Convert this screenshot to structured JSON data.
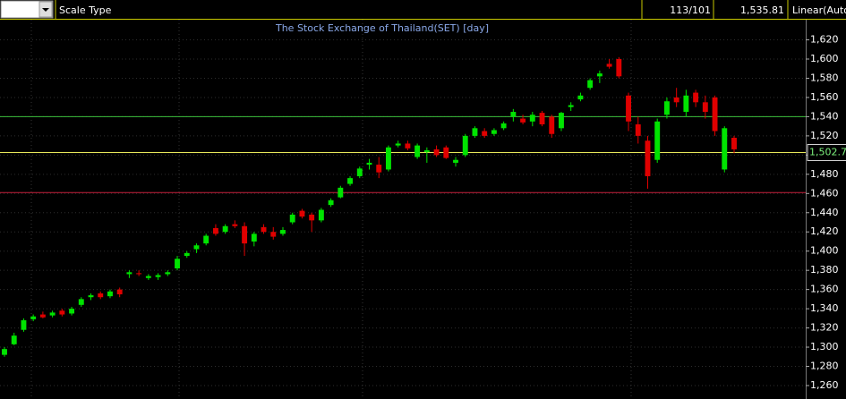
{
  "toolbar": {
    "scale_type": "Scale Type",
    "count": "113/101",
    "price": "1,535.81",
    "scale_mode": "Linear(Auto"
  },
  "chart_data": {
    "type": "candlestick",
    "title": "The Stock Exchange of Thailand(SET) [day]",
    "open": [
      1292,
      1303,
      1318,
      1329,
      1334,
      1333,
      1338,
      1335,
      1344,
      1352,
      1356,
      1353,
      1360,
      1376,
      1377,
      1372,
      1373,
      1376,
      1382,
      1395,
      1402,
      1408,
      1424,
      1420,
      1428,
      1426,
      1410,
      1425,
      1420,
      1418,
      1430,
      1442,
      1438,
      1432,
      1448,
      1456,
      1470,
      1478,
      1490,
      1490,
      1485,
      1510,
      1512,
      1498,
      1503,
      1506,
      1508,
      1492,
      1500,
      1520,
      1525,
      1522,
      1528,
      1540,
      1538,
      1535,
      1544,
      1540,
      1528,
      1550,
      1558,
      1570,
      1582,
      1595,
      1600,
      1562,
      1532,
      1515,
      1495,
      1542,
      1560,
      1545,
      1565,
      1555,
      1560,
      1485,
      1518
    ],
    "high": [
      1300,
      1315,
      1330,
      1334,
      1337,
      1338,
      1340,
      1342,
      1352,
      1356,
      1358,
      1360,
      1362,
      1380,
      1380,
      1376,
      1377,
      1380,
      1395,
      1400,
      1408,
      1418,
      1428,
      1428,
      1432,
      1430,
      1420,
      1428,
      1425,
      1425,
      1440,
      1444,
      1440,
      1445,
      1455,
      1468,
      1478,
      1488,
      1496,
      1498,
      1510,
      1515,
      1515,
      1512,
      1508,
      1510,
      1510,
      1498,
      1522,
      1530,
      1528,
      1528,
      1535,
      1548,
      1542,
      1545,
      1546,
      1542,
      1545,
      1555,
      1565,
      1580,
      1588,
      1600,
      1602,
      1565,
      1540,
      1520,
      1538,
      1560,
      1570,
      1568,
      1568,
      1562,
      1562,
      1530,
      1520
    ],
    "low": [
      1290,
      1302,
      1316,
      1327,
      1330,
      1331,
      1332,
      1333,
      1342,
      1349,
      1350,
      1351,
      1352,
      1372,
      1374,
      1370,
      1370,
      1374,
      1380,
      1393,
      1398,
      1406,
      1416,
      1418,
      1424,
      1395,
      1405,
      1418,
      1412,
      1416,
      1428,
      1434,
      1420,
      1430,
      1446,
      1455,
      1468,
      1476,
      1485,
      1476,
      1483,
      1508,
      1505,
      1496,
      1492,
      1498,
      1496,
      1488,
      1498,
      1518,
      1518,
      1520,
      1526,
      1535,
      1532,
      1530,
      1530,
      1518,
      1525,
      1546,
      1556,
      1568,
      1575,
      1590,
      1580,
      1525,
      1512,
      1465,
      1492,
      1538,
      1550,
      1540,
      1550,
      1538,
      1520,
      1482,
      1502
    ],
    "close": [
      1298,
      1312,
      1328,
      1332,
      1331,
      1336,
      1334,
      1340,
      1350,
      1354,
      1352,
      1358,
      1355,
      1378,
      1376,
      1374,
      1375,
      1378,
      1392,
      1398,
      1406,
      1416,
      1418,
      1426,
      1426,
      1408,
      1418,
      1420,
      1415,
      1422,
      1438,
      1436,
      1432,
      1443,
      1453,
      1466,
      1476,
      1486,
      1492,
      1482,
      1508,
      1512,
      1507,
      1510,
      1505,
      1500,
      1497,
      1495,
      1520,
      1528,
      1520,
      1526,
      1533,
      1545,
      1534,
      1542,
      1532,
      1522,
      1544,
      1552,
      1562,
      1578,
      1585,
      1592,
      1582,
      1535,
      1520,
      1478,
      1535,
      1556,
      1555,
      1562,
      1555,
      1545,
      1525,
      1528,
      1506
    ],
    "up_color": "#00e400",
    "down_color": "#e00000",
    "ylim": [
      1246,
      1641
    ],
    "yticks": [
      {
        "value": 1260,
        "label": "1,260"
      },
      {
        "value": 1280,
        "label": "1,280"
      },
      {
        "value": 1300,
        "label": "1,300"
      },
      {
        "value": 1320,
        "label": "1,320"
      },
      {
        "value": 1340,
        "label": "1,340"
      },
      {
        "value": 1360,
        "label": "1,360"
      },
      {
        "value": 1380,
        "label": "1,380"
      },
      {
        "value": 1400,
        "label": "1,400"
      },
      {
        "value": 1420,
        "label": "1,420"
      },
      {
        "value": 1440,
        "label": "1,440"
      },
      {
        "value": 1460,
        "label": "1,460"
      },
      {
        "value": 1480,
        "label": "1,480"
      },
      {
        "value": 1500,
        "label": "1,500"
      },
      {
        "value": 1520,
        "label": "1,520"
      },
      {
        "value": 1540,
        "label": "1,540"
      },
      {
        "value": 1560,
        "label": "1,560"
      },
      {
        "value": 1580,
        "label": "1,580"
      },
      {
        "value": 1600,
        "label": "1,600"
      },
      {
        "value": 1620,
        "label": "1,620"
      }
    ],
    "hlines": [
      {
        "value": 1540,
        "color": "#3cc03c"
      },
      {
        "value": 1502.7,
        "label": "1,502.7",
        "color": "#e8e85a"
      },
      {
        "value": 1461,
        "color": "#c8203c"
      }
    ],
    "grid": true
  }
}
